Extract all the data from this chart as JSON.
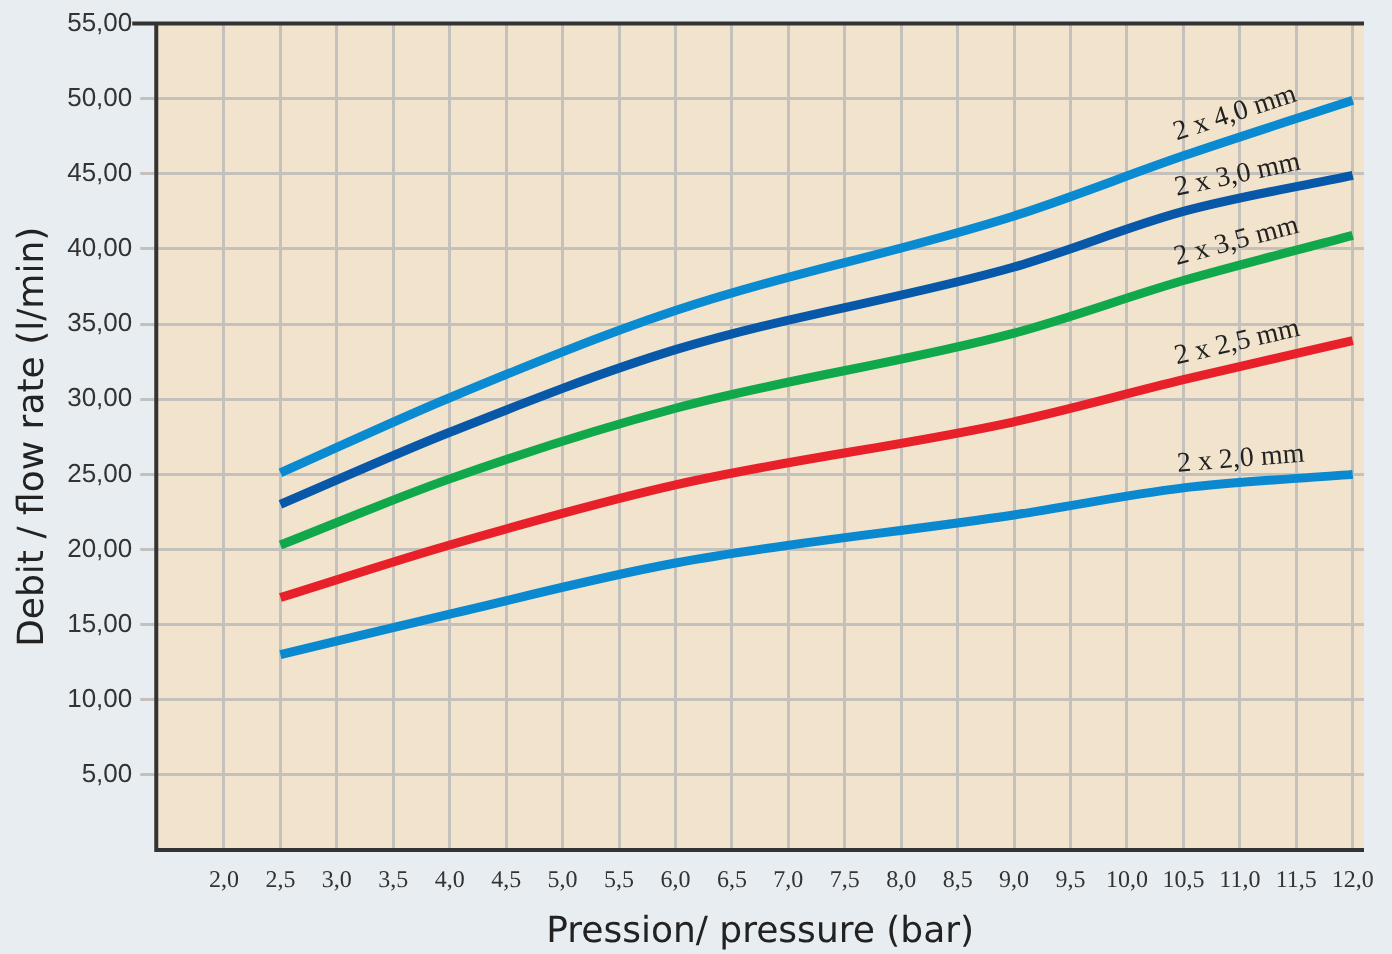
{
  "chart_data": {
    "type": "line",
    "xlabel": "Pression/ pressure (bar)",
    "ylabel": "Debit / flow rate (l/min)",
    "xlim": [
      1.4,
      12.1
    ],
    "ylim": [
      0,
      55
    ],
    "xticks": [
      {
        "value": 2,
        "label": "2,0"
      },
      {
        "value": 2.5,
        "label": "2,5"
      },
      {
        "value": 3,
        "label": "3,0"
      },
      {
        "value": 3.5,
        "label": "3,5"
      },
      {
        "value": 4,
        "label": "4,0"
      },
      {
        "value": 4.5,
        "label": "4,5"
      },
      {
        "value": 5,
        "label": "5,0"
      },
      {
        "value": 5.5,
        "label": "5,5"
      },
      {
        "value": 6,
        "label": "6,0"
      },
      {
        "value": 6.5,
        "label": "6,5"
      },
      {
        "value": 7,
        "label": "7,0"
      },
      {
        "value": 7.5,
        "label": "7,5"
      },
      {
        "value": 8,
        "label": "8,0"
      },
      {
        "value": 8.5,
        "label": "8,5"
      },
      {
        "value": 9,
        "label": "9,0"
      },
      {
        "value": 9.5,
        "label": "9,5"
      },
      {
        "value": 10,
        "label": "10,0"
      },
      {
        "value": 10.5,
        "label": "10,5"
      },
      {
        "value": 11,
        "label": "11,0"
      },
      {
        "value": 11.5,
        "label": "11,5"
      },
      {
        "value": 12,
        "label": "12,0"
      }
    ],
    "yticks": [
      {
        "value": 5,
        "label": "5,00"
      },
      {
        "value": 10,
        "label": "10,00"
      },
      {
        "value": 15,
        "label": "15,00"
      },
      {
        "value": 20,
        "label": "20,00"
      },
      {
        "value": 25,
        "label": "25,00"
      },
      {
        "value": 30,
        "label": "30,00"
      },
      {
        "value": 35,
        "label": "35,00"
      },
      {
        "value": 40,
        "label": "40,00"
      },
      {
        "value": 45,
        "label": "45,00"
      },
      {
        "value": 50,
        "label": "50,00"
      },
      {
        "value": 55,
        "label": "55,00"
      }
    ],
    "x": [
      2.5,
      4,
      6,
      9,
      10.5,
      12
    ],
    "series": [
      {
        "name": "2 x 4,0 mm",
        "color": "#0a8ad0",
        "values": [
          25.1,
          30.1,
          35.9,
          42.2,
          46.2,
          49.9
        ]
      },
      {
        "name": "2 x 3,0 mm",
        "color": "#0758a8",
        "values": [
          23.0,
          27.8,
          33.3,
          38.8,
          42.5,
          44.9
        ]
      },
      {
        "name": "2 x 3,5 mm",
        "color": "#10a84a",
        "values": [
          20.3,
          24.7,
          29.4,
          34.4,
          37.9,
          40.9
        ]
      },
      {
        "name": "2 x 2,5 mm",
        "color": "#e8202a",
        "values": [
          16.8,
          20.3,
          24.3,
          28.5,
          31.3,
          33.9
        ]
      },
      {
        "name": "2 x 2,0 mm",
        "color": "#0a88d0",
        "values": [
          13.0,
          15.7,
          19.1,
          22.3,
          24.1,
          25.0
        ]
      }
    ],
    "grid": true,
    "legend": false,
    "marker": "none",
    "line_style": "solid"
  }
}
